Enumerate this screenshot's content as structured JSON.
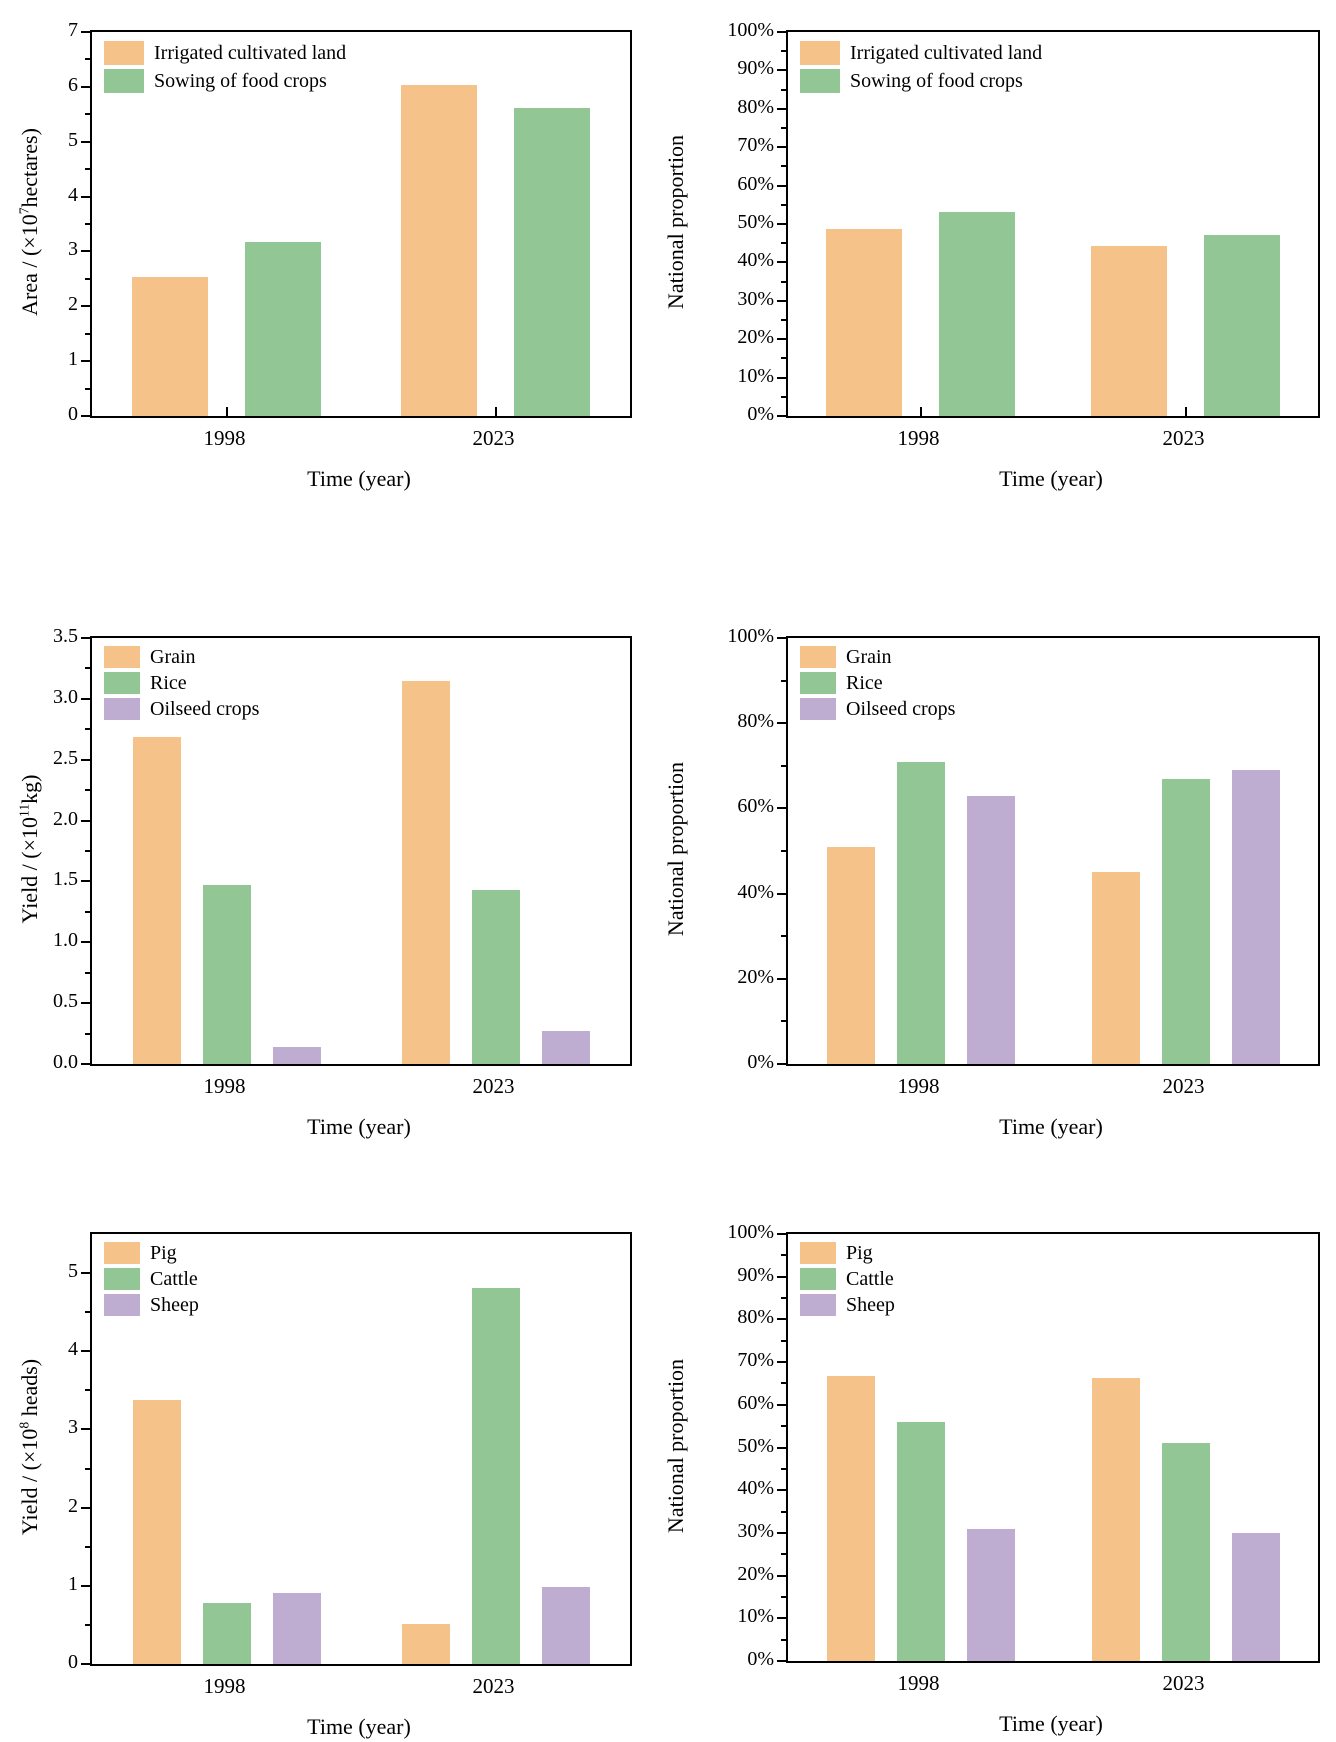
{
  "figure": {
    "background": "#ffffff",
    "axis_color": "#000000",
    "text_color": "#000000",
    "palette": {
      "orange": "#F5C289",
      "green": "#92C795",
      "purple": "#BFACD1"
    }
  },
  "chart_data": [
    {
      "id": "area-absolute",
      "type": "bar",
      "ylabel": {
        "prefix": "Area / (×10",
        "sup": "7",
        "suffix": "hectares)"
      },
      "xlabel": "Time (year)",
      "categories": [
        "1998",
        "2023"
      ],
      "series": [
        {
          "name": "Irrigated cultivated land",
          "color_key": "orange",
          "values": [
            2.53,
            6.03
          ]
        },
        {
          "name": "Sowing of food crops",
          "color_key": "green",
          "values": [
            3.18,
            5.62
          ]
        }
      ],
      "ylim": [
        0,
        7
      ],
      "yticks": {
        "major": 1,
        "minor": 0.5,
        "format": "int"
      },
      "grid": false,
      "legend_position": "top-left"
    },
    {
      "id": "area-national-proportion",
      "type": "bar",
      "ylabel": {
        "prefix": "National proportion",
        "sup": "",
        "suffix": ""
      },
      "xlabel": "Time (year)",
      "categories": [
        "1998",
        "2023"
      ],
      "series": [
        {
          "name": "Irrigated cultivated land",
          "color_key": "orange",
          "values": [
            48.7,
            44.4
          ]
        },
        {
          "name": "Sowing of food crops",
          "color_key": "green",
          "values": [
            53.0,
            47.2
          ]
        }
      ],
      "ylim": [
        0,
        100
      ],
      "yticks": {
        "major": 10,
        "minor": 5,
        "format": "pct"
      },
      "grid": false,
      "legend_position": "top-left"
    },
    {
      "id": "crop-yield-absolute",
      "type": "bar",
      "ylabel": {
        "prefix": "Yield / (×10",
        "sup": "11",
        "suffix": "kg)"
      },
      "xlabel": "Time (year)",
      "categories": [
        "1998",
        "2023"
      ],
      "series": [
        {
          "name": "Grain",
          "color_key": "orange",
          "values": [
            2.69,
            3.15
          ]
        },
        {
          "name": "Rice",
          "color_key": "green",
          "values": [
            1.47,
            1.43
          ]
        },
        {
          "name": "Oilseed crops",
          "color_key": "purple",
          "values": [
            0.14,
            0.27
          ]
        }
      ],
      "ylim": [
        0,
        3.5
      ],
      "yticks": {
        "major": 0.5,
        "minor": 0.25,
        "format": "dec1"
      },
      "grid": false,
      "legend_position": "top-left"
    },
    {
      "id": "crop-national-proportion",
      "type": "bar",
      "ylabel": {
        "prefix": "National proportion",
        "sup": "",
        "suffix": ""
      },
      "xlabel": "Time (year)",
      "categories": [
        "1998",
        "2023"
      ],
      "series": [
        {
          "name": "Grain",
          "color_key": "orange",
          "values": [
            51,
            45
          ]
        },
        {
          "name": "Rice",
          "color_key": "green",
          "values": [
            71,
            67
          ]
        },
        {
          "name": "Oilseed crops",
          "color_key": "purple",
          "values": [
            63,
            69
          ]
        }
      ],
      "ylim": [
        0,
        100
      ],
      "yticks": {
        "major": 20,
        "minor": 10,
        "format": "pct"
      },
      "grid": false,
      "legend_position": "top-left"
    },
    {
      "id": "livestock-yield-absolute",
      "type": "bar",
      "ylabel": {
        "prefix": "Yield / (×10",
        "sup": "8",
        "suffix": " heads)"
      },
      "xlabel": "Time (year)",
      "categories": [
        "1998",
        "2023"
      ],
      "series": [
        {
          "name": "Pig",
          "color_key": "orange",
          "values": [
            3.38,
            0.51
          ]
        },
        {
          "name": "Cattle",
          "color_key": "green",
          "values": [
            0.78,
            4.81
          ]
        },
        {
          "name": "Sheep",
          "color_key": "purple",
          "values": [
            0.91,
            0.99
          ]
        }
      ],
      "ylim": [
        0,
        5.5
      ],
      "yticks": {
        "major": 1,
        "minor": 0.5,
        "format": "int",
        "label_max": 5
      },
      "grid": false,
      "legend_position": "top-left"
    },
    {
      "id": "livestock-national-proportion",
      "type": "bar",
      "ylabel": {
        "prefix": "National proportion",
        "sup": "",
        "suffix": ""
      },
      "xlabel": "Time (year)",
      "categories": [
        "1998",
        "2023"
      ],
      "series": [
        {
          "name": "Pig",
          "color_key": "orange",
          "values": [
            66.8,
            66.2
          ]
        },
        {
          "name": "Cattle",
          "color_key": "green",
          "values": [
            56,
            51
          ]
        },
        {
          "name": "Sheep",
          "color_key": "purple",
          "values": [
            31,
            30
          ]
        }
      ],
      "ylim": [
        0,
        100
      ],
      "yticks": {
        "major": 10,
        "minor": 5,
        "format": "pct"
      },
      "grid": false,
      "legend_position": "top-left"
    }
  ]
}
